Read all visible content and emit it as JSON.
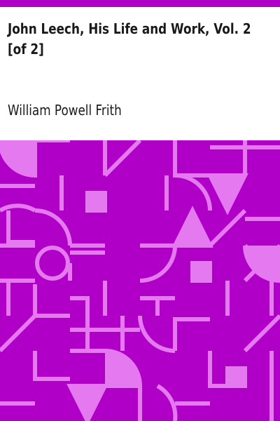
{
  "book": {
    "title": "John Leech, His Life and Work, Vol. 2 [of 2]",
    "author": "William Powell Frith"
  },
  "colors": {
    "accent": "#b000c8",
    "pattern": "#e479f0",
    "background": "#ffffff",
    "text": "#1a1a1a"
  },
  "cover_art": {
    "icon": "geometric-pattern"
  }
}
